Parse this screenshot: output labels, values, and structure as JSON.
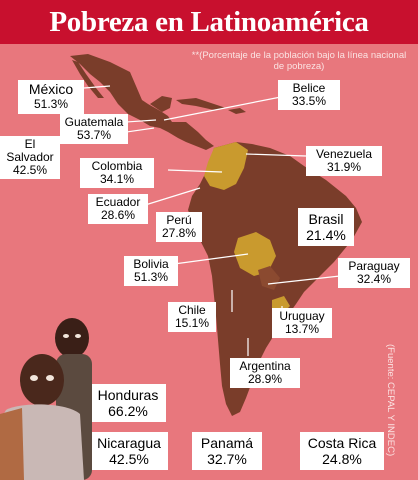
{
  "title": "Pobreza en Latinoamérica",
  "subtitle": "**(Porcentaje de la población bajo la línea nacional de pobreza)",
  "source": "(Fuente: CEPAL Y INDEC)",
  "colors": {
    "background": "#e8777d",
    "title_bar": "#c8102e",
    "land": "#7a3d2a",
    "highlight": "#c99a2e"
  },
  "countries": [
    {
      "id": "mexico",
      "name": "México",
      "value": "51.3%"
    },
    {
      "id": "guatemala",
      "name": "Guatemala",
      "value": "53.7%"
    },
    {
      "id": "el-salvador",
      "name": "El Salvador",
      "value": "42.5%"
    },
    {
      "id": "belice",
      "name": "Belice",
      "value": "33.5%"
    },
    {
      "id": "colombia",
      "name": "Colombia",
      "value": "34.1%"
    },
    {
      "id": "venezuela",
      "name": "Venezuela",
      "value": "31.9%"
    },
    {
      "id": "ecuador",
      "name": "Ecuador",
      "value": "28.6%"
    },
    {
      "id": "peru",
      "name": "Perú",
      "value": "27.8%"
    },
    {
      "id": "brasil",
      "name": "Brasil",
      "value": "21.4%"
    },
    {
      "id": "bolivia",
      "name": "Bolivia",
      "value": "51.3%"
    },
    {
      "id": "paraguay",
      "name": "Paraguay",
      "value": "32.4%"
    },
    {
      "id": "chile",
      "name": "Chile",
      "value": "15.1%"
    },
    {
      "id": "uruguay",
      "name": "Uruguay",
      "value": "13.7%"
    },
    {
      "id": "argentina",
      "name": "Argentina",
      "value": "28.9%"
    },
    {
      "id": "honduras",
      "name": "Honduras",
      "value": "66.2%"
    },
    {
      "id": "nicaragua",
      "name": "Nicaragua",
      "value": "42.5%"
    },
    {
      "id": "panama",
      "name": "Panamá",
      "value": "32.7%"
    },
    {
      "id": "costa-rica",
      "name": "Costa Rica",
      "value": "24.8%"
    }
  ]
}
